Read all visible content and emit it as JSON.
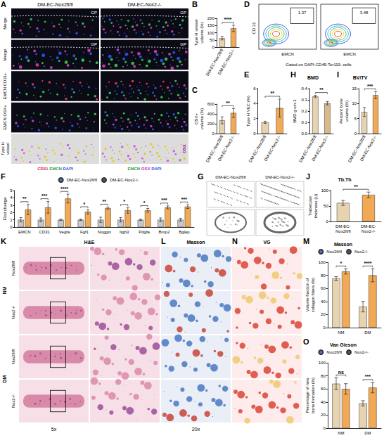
{
  "figure": {
    "fluorescence": {
      "letter": "A",
      "columns": [
        "DM-EC-Nox2fl/fl",
        "DM-EC-Nox2-/-"
      ],
      "rows": [
        "Merge",
        "Merge",
        "EMCN CD31+",
        "EMCN OSX+",
        "Type H vessel"
      ],
      "growth_plate": "GP",
      "side_label": "OSX",
      "captions": [
        [
          {
            "text": "CD31",
            "color": "#e0204f"
          },
          {
            "text": "EMCN",
            "color": "#1f9e3a"
          },
          {
            "text": "DAPI",
            "color": "#2d4fe0"
          }
        ],
        [
          {
            "text": "EMCN",
            "color": "#1f9e3a"
          },
          {
            "text": "OSX",
            "color": "#c02cc8"
          },
          {
            "text": "DAPI",
            "color": "#2d4fe0"
          }
        ]
      ]
    },
    "flow": {
      "letter": "D",
      "xlabel": "EMCN",
      "ylabel": "CD 31",
      "gating": "Gated on DAPI-CD45-Ter119- cells",
      "gate_percent": [
        1.37,
        3.48
      ]
    },
    "microct": {
      "letter": "G",
      "columns": [
        "DM-EC-Nox2fl/fl",
        "DM-EC-Nox2-/-"
      ]
    },
    "histology": {
      "panels": [
        {
          "letter": "K",
          "title": "H&E"
        },
        {
          "letter": "L",
          "title": "Masson"
        },
        {
          "letter": "N",
          "title": "VG"
        }
      ],
      "groups": [
        "NM",
        "DM"
      ],
      "genotypes": [
        "Nox2fl/fl",
        "Nox2-/-"
      ],
      "magnifications": [
        "5x",
        "20x"
      ]
    }
  },
  "chart_data": [
    {
      "letter": "B",
      "type": "bar",
      "ylabel": "Type H vessel volume (%)",
      "categories": [
        "DM-EC-Nox2fl/fl",
        "DM-EC-Nox2-/-"
      ],
      "values": [
        62,
        130
      ],
      "errors": [
        12,
        22
      ],
      "colors": [
        "#e7d3b0",
        "#f2a955"
      ],
      "ylim": [
        0,
        200
      ],
      "yticks": [
        0,
        50,
        100,
        150,
        200
      ],
      "significance": "****"
    },
    {
      "letter": "C",
      "type": "bar",
      "ylabel": "OSX+ volume (%)",
      "categories": [
        "DM-EC-Nox2fl/fl",
        "DM-EC-Nox2-/-"
      ],
      "values": [
        270,
        420
      ],
      "errors": [
        70,
        90
      ],
      "colors": [
        "#e7d3b0",
        "#f2a955"
      ],
      "ylim": [
        0,
        600
      ],
      "yticks": [
        0,
        200,
        400,
        600
      ],
      "significance": "**"
    },
    {
      "letter": "E",
      "type": "bar",
      "ylabel": "Type H VEC (%)",
      "categories": [
        "DM-EC-Nox2fl/fl",
        "DM-EC-Nox2-/-"
      ],
      "values": [
        1.5,
        3.4
      ],
      "errors": [
        0.15,
        1.2
      ],
      "colors": [
        "#e7d3b0",
        "#f2a955"
      ],
      "ylim": [
        0,
        6
      ],
      "yticks": [
        0,
        2,
        4,
        6
      ],
      "significance": "**"
    },
    {
      "letter": "H",
      "type": "bar",
      "title": "BMD",
      "ylabel": "BMD g cm-3",
      "categories": [
        "DM-EC-Nox2fl/fl",
        "DM-EC-Nox2-/-"
      ],
      "values": [
        0.33,
        0.27
      ],
      "errors": [
        0.01,
        0.015
      ],
      "colors": [
        "#e7d3b0",
        "#d9b98a"
      ],
      "ylim": [
        0,
        0.4
      ],
      "yticks": [
        {
          "value": 0,
          "label": "0.0"
        },
        0.1,
        0.2,
        0.3,
        0.4
      ],
      "significance": "**"
    },
    {
      "letter": "I",
      "type": "bar",
      "title": "BV/TV",
      "ylabel": "Percent bone volume (%)",
      "categories": [
        "DM-EC-Nox2fl/fl",
        "DM-EC-Nox2-/-"
      ],
      "values": [
        7.2,
        12.8
      ],
      "errors": [
        1.5,
        1.2
      ],
      "colors": [
        "#e7d3b0",
        "#f2a955"
      ],
      "ylim": [
        0,
        15
      ],
      "yticks": [
        0,
        5,
        10,
        15
      ],
      "significance": "***"
    },
    {
      "letter": "F",
      "type": "bar",
      "ylabel": "Flod change",
      "categories": [
        "EMCN",
        "CD31",
        "Vegfa",
        "Fgf1",
        "Noggin",
        "Itgb3",
        "Pdgfa",
        "Bmp2",
        "Bglap"
      ],
      "series": [
        {
          "name": "DM-EC-Nox2fl/fl",
          "color": "#c8c8c8",
          "values": [
            1,
            1,
            1,
            1,
            1,
            1,
            1,
            1,
            1
          ],
          "errors": [
            0.3,
            0.25,
            0.1,
            0.1,
            0.35,
            0.3,
            0.1,
            0.25,
            0.2
          ]
        },
        {
          "name": "DM-EC-Nox2-/-",
          "color": "#f2a955",
          "values": [
            2.4,
            2.7,
            3.9,
            2.1,
            2.6,
            2.3,
            2.3,
            2.7,
            2.8
          ],
          "errors": [
            0.7,
            0.8,
            0.6,
            0.3,
            0.15,
            0.4,
            0.25,
            0.2,
            0.25
          ]
        }
      ],
      "ylim": [
        0,
        5
      ],
      "yticks": [
        0,
        1,
        2,
        3,
        4,
        5
      ],
      "significance": [
        "**",
        "***",
        "****",
        "*",
        "**",
        "*",
        "*",
        "***",
        "***"
      ],
      "legend": "top"
    },
    {
      "letter": "J",
      "type": "bar",
      "title": "Tb.Th",
      "ylabel": "Trabecular thickness (U)",
      "categories": [
        "DM-EC-Nox2fl/fl",
        "DM-EC-Nox2-/-"
      ],
      "values": [
        60,
        86
      ],
      "errors": [
        8,
        9
      ],
      "colors": [
        "#e7d3b0",
        "#f2a955"
      ],
      "ylim": [
        0,
        100
      ],
      "yticks": [
        0,
        50,
        100
      ],
      "significance": "**"
    },
    {
      "letter": "M",
      "type": "bar",
      "title": "Masson",
      "ylabel": "Volume fraction of collagen fibers (%)",
      "categories": [
        "NM",
        "DM"
      ],
      "series": [
        {
          "name": "Nox2fl/fl",
          "color": "#e7d3b0",
          "values": [
            75,
            32
          ],
          "errors": [
            3,
            8
          ]
        },
        {
          "name": "Nox2-/-",
          "color": "#f2a955",
          "values": [
            86,
            80
          ],
          "errors": [
            4,
            10
          ]
        }
      ],
      "ylim": [
        0,
        100
      ],
      "yticks": [
        0,
        20,
        40,
        60,
        80,
        100
      ],
      "significance": [
        "*",
        "****"
      ],
      "legend": "top"
    },
    {
      "letter": "O",
      "type": "bar",
      "title": "Van Gieson",
      "ylabel": "Percentage of new bone formation (%)",
      "categories": [
        "NM",
        "DM"
      ],
      "series": [
        {
          "name": "Nox2fl/fl",
          "color": "#e7d3b0",
          "values": [
            68,
            38
          ],
          "errors": [
            9,
            4
          ]
        },
        {
          "name": "Nox2-/-",
          "color": "#f2a955",
          "values": [
            60,
            62
          ],
          "errors": [
            8,
            8
          ]
        }
      ],
      "ylim": [
        0,
        100
      ],
      "yticks": [
        0,
        20,
        40,
        60,
        80,
        100
      ],
      "significance": [
        "ns",
        "***"
      ],
      "legend": "top"
    }
  ]
}
